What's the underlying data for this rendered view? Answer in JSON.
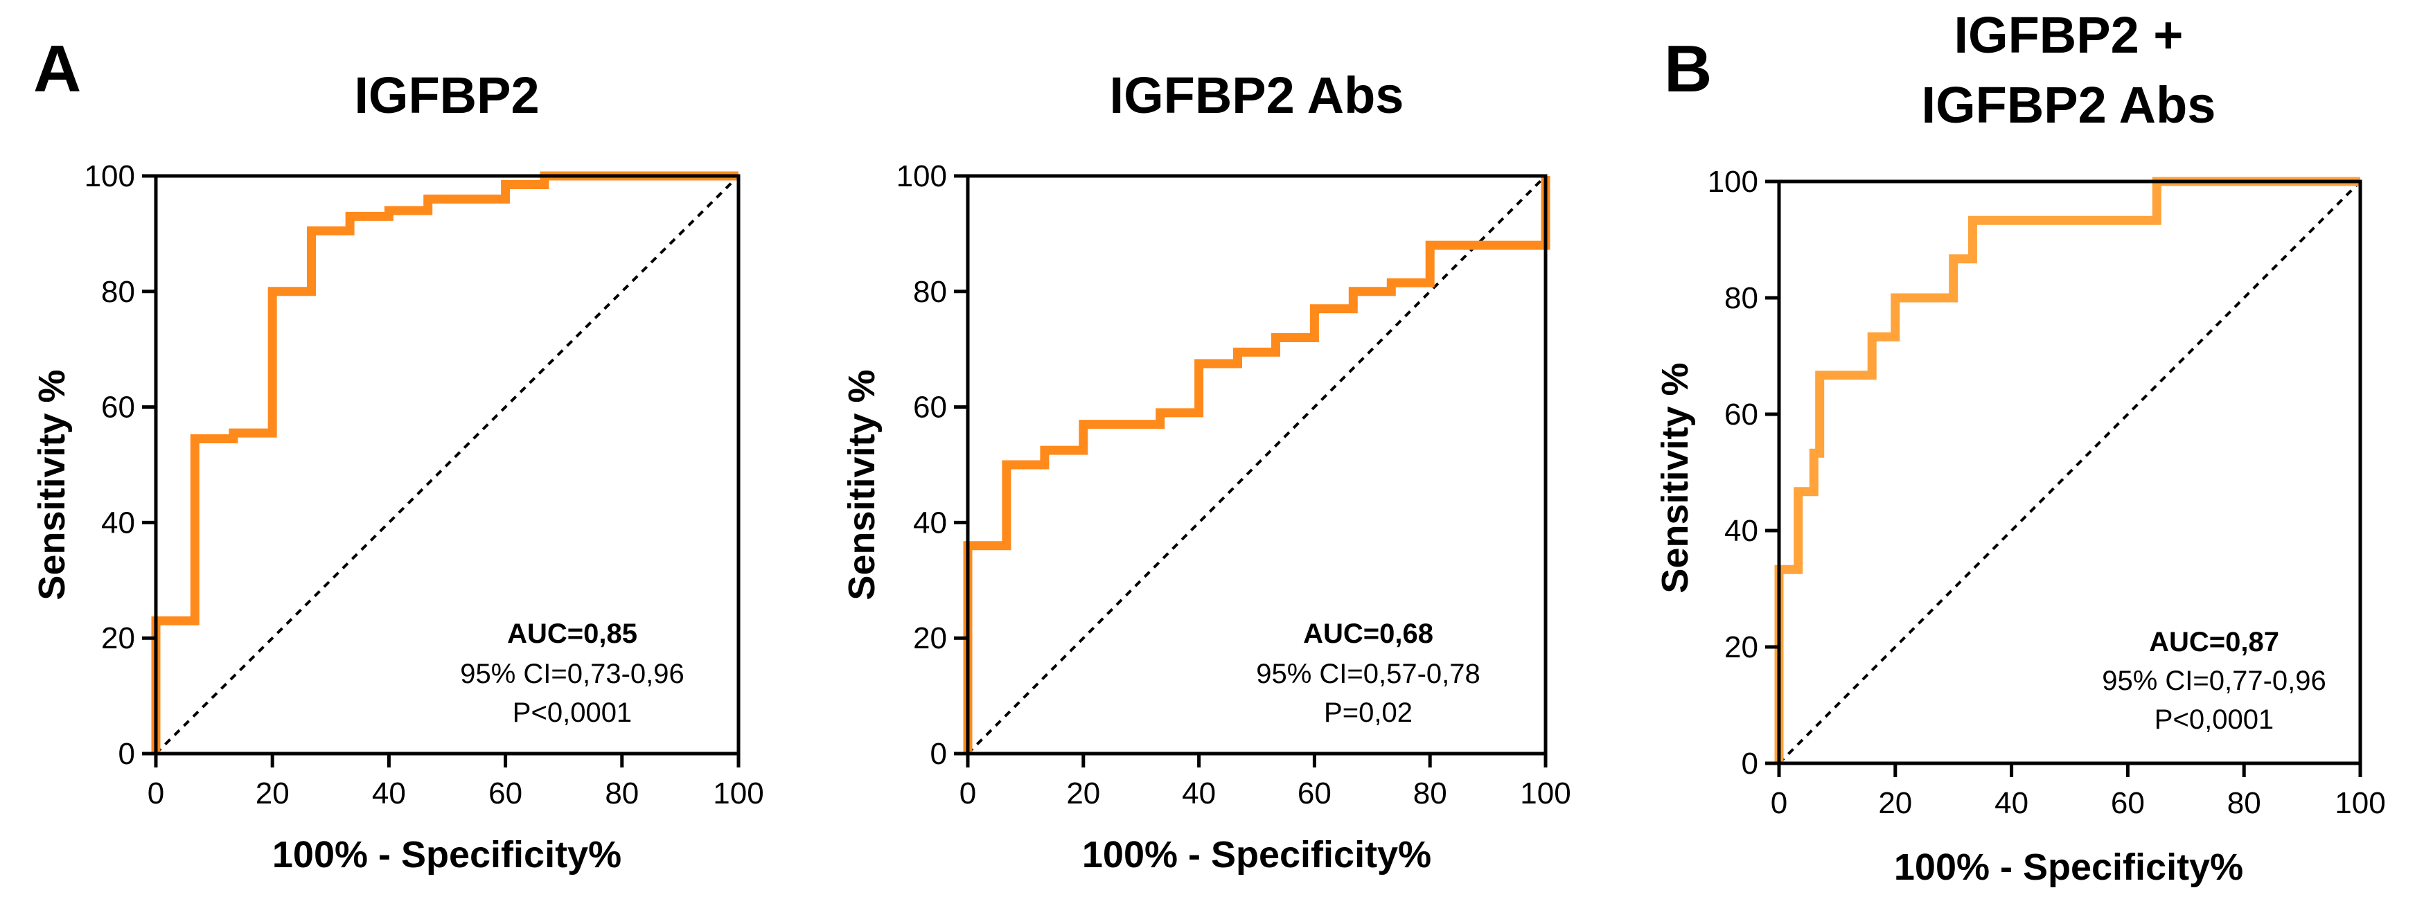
{
  "panel_letters": {
    "a": "A",
    "b": "B"
  },
  "chart_data": [
    {
      "type": "line",
      "panel": "A",
      "title": "IGFBP2",
      "xlabel": "100% - Specificity%",
      "ylabel": "Sensitivity %",
      "xlim": [
        0,
        100
      ],
      "ylim": [
        0,
        100
      ],
      "xticks": [
        "0",
        "20",
        "40",
        "60",
        "80",
        "100"
      ],
      "yticks": [
        "0",
        "20",
        "40",
        "60",
        "80",
        "100"
      ],
      "reference_line": "diagonal",
      "color": "#FF8A1C",
      "series": [
        {
          "name": "IGFBP2",
          "x": [
            0,
            0,
            6.7,
            6.7,
            13.3,
            13.3,
            20,
            20,
            26.7,
            26.7,
            33.3,
            33.3,
            40,
            40,
            46.7,
            46.7,
            60,
            60,
            66.7,
            66.7,
            100
          ],
          "y": [
            0,
            23,
            23,
            54.5,
            54.5,
            55.5,
            55.5,
            80,
            80,
            90.5,
            90.5,
            93,
            93,
            94,
            94,
            96,
            96,
            98.5,
            98.5,
            100,
            100
          ]
        }
      ],
      "annotation": {
        "auc": "AUC=0,85",
        "ci": "95% CI=0,73-0,96",
        "p": "P<0,0001"
      }
    },
    {
      "type": "line",
      "panel": "A",
      "title": "IGFBP2 Abs",
      "xlabel": "100% - Specificity%",
      "ylabel": "Sensitivity %",
      "xlim": [
        0,
        100
      ],
      "ylim": [
        0,
        100
      ],
      "xticks": [
        "0",
        "20",
        "40",
        "60",
        "80",
        "100"
      ],
      "yticks": [
        "0",
        "20",
        "40",
        "60",
        "80",
        "100"
      ],
      "reference_line": "diagonal",
      "color": "#FF8A1C",
      "series": [
        {
          "name": "IGFBP2 Abs",
          "x": [
            0,
            0,
            6.7,
            6.7,
            13.3,
            13.3,
            20,
            20,
            33.3,
            33.3,
            40,
            40,
            46.7,
            46.7,
            53.3,
            53.3,
            60,
            60,
            66.7,
            66.7,
            73.3,
            73.3,
            80,
            80,
            100,
            100
          ],
          "y": [
            0,
            36,
            36,
            50,
            50,
            52.5,
            52.5,
            57,
            57,
            59,
            59,
            67.5,
            67.5,
            69.5,
            69.5,
            72,
            72,
            77,
            77,
            80,
            80,
            81.5,
            81.5,
            88,
            88,
            100
          ]
        }
      ],
      "annotation": {
        "auc": "AUC=0,68",
        "ci": "95% CI=0,57-0,78",
        "p": "P=0,02"
      }
    },
    {
      "type": "line",
      "panel": "B",
      "title": [
        "IGFBP2 +",
        "IGFBP2 Abs"
      ],
      "xlabel": "100% - Specificity%",
      "ylabel": "Sensitivity %",
      "xlim": [
        0,
        100
      ],
      "ylim": [
        0,
        100
      ],
      "xticks": [
        "0",
        "20",
        "40",
        "60",
        "80",
        "100"
      ],
      "yticks": [
        "0",
        "20",
        "40",
        "60",
        "80",
        "100"
      ],
      "reference_line": "diagonal",
      "color": "#FFA33A",
      "series": [
        {
          "name": "IGFBP2 + IGFBP2 Abs",
          "x": [
            0,
            0,
            3.3,
            3.3,
            6,
            6,
            7,
            7,
            16,
            16,
            20,
            20,
            30,
            30,
            33.3,
            33.3,
            65,
            65,
            100
          ],
          "y": [
            0,
            33.3,
            33.3,
            46.7,
            46.7,
            53.3,
            53.3,
            66.7,
            66.7,
            73.3,
            73.3,
            80,
            80,
            86.7,
            86.7,
            93.3,
            93.3,
            100,
            100
          ]
        }
      ],
      "annotation": {
        "auc": "AUC=0,87",
        "ci": "95% CI=0,77-0,96",
        "p": "P<0,0001"
      }
    }
  ]
}
